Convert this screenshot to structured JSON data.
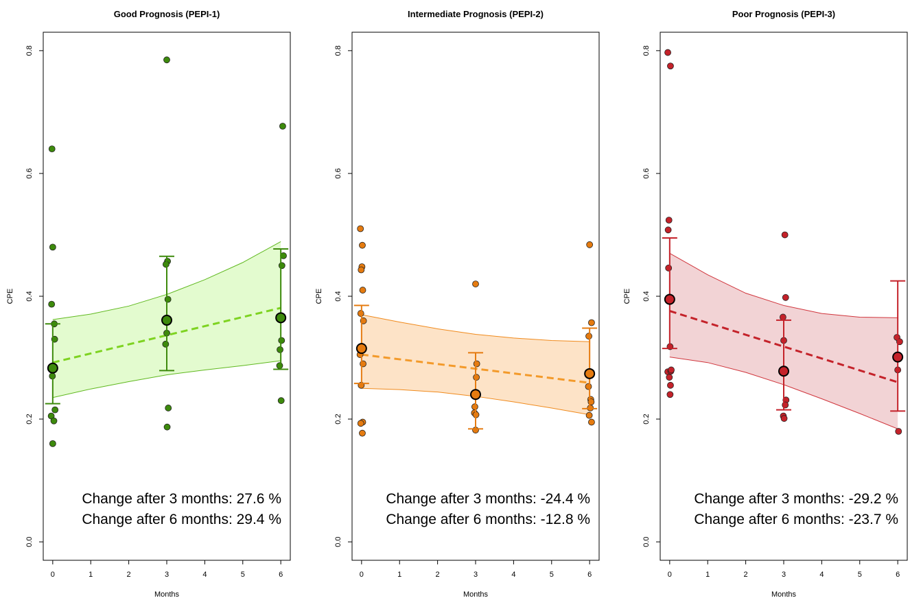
{
  "chart_data": [
    {
      "type": "scatter",
      "title": "Good Prognosis (PEPI-1)",
      "xlabel": "Months",
      "ylabel": "CPE",
      "xlim": [
        -0.25,
        6.25
      ],
      "ylim": [
        -0.03,
        0.83
      ],
      "xticks": [
        "0",
        "1",
        "2",
        "3",
        "4",
        "5",
        "6"
      ],
      "yticks": [
        "0.0",
        "0.2",
        "0.4",
        "0.6",
        "0.8"
      ],
      "colors": {
        "point": "#3d8a0c",
        "line": "#7ed321",
        "band_fill": "#e3fbcf",
        "band_edge": "#5fb81e"
      },
      "points": [
        {
          "x": -0.02,
          "y": 0.64
        },
        {
          "x": 0.0,
          "y": 0.48
        },
        {
          "x": -0.03,
          "y": 0.387
        },
        {
          "x": 0.04,
          "y": 0.355
        },
        {
          "x": 0.05,
          "y": 0.33
        },
        {
          "x": 0.01,
          "y": 0.285
        },
        {
          "x": -0.01,
          "y": 0.27
        },
        {
          "x": 0.06,
          "y": 0.215
        },
        {
          "x": -0.04,
          "y": 0.205
        },
        {
          "x": 0.03,
          "y": 0.197
        },
        {
          "x": 0.0,
          "y": 0.16
        },
        {
          "x": 3.0,
          "y": 0.785
        },
        {
          "x": 3.02,
          "y": 0.457
        },
        {
          "x": 2.98,
          "y": 0.452
        },
        {
          "x": 3.03,
          "y": 0.395
        },
        {
          "x": 3.0,
          "y": 0.34
        },
        {
          "x": 2.97,
          "y": 0.322
        },
        {
          "x": 3.04,
          "y": 0.218
        },
        {
          "x": 3.01,
          "y": 0.187
        },
        {
          "x": 6.05,
          "y": 0.677
        },
        {
          "x": 6.07,
          "y": 0.466
        },
        {
          "x": 6.03,
          "y": 0.45
        },
        {
          "x": 6.02,
          "y": 0.328
        },
        {
          "x": 5.98,
          "y": 0.313
        },
        {
          "x": 5.97,
          "y": 0.287
        },
        {
          "x": 6.01,
          "y": 0.23
        }
      ],
      "means": [
        {
          "x": 0,
          "y": 0.283,
          "lower": 0.225,
          "upper": 0.355
        },
        {
          "x": 3,
          "y": 0.361,
          "lower": 0.279,
          "upper": 0.465
        },
        {
          "x": 6,
          "y": 0.365,
          "lower": 0.281,
          "upper": 0.477
        }
      ],
      "fit": {
        "x": [
          0,
          6
        ],
        "y": [
          0.292,
          0.381
        ]
      },
      "band": {
        "x": [
          0,
          1,
          2,
          3,
          4,
          5,
          6
        ],
        "lower": [
          0.235,
          0.249,
          0.261,
          0.272,
          0.28,
          0.287,
          0.295
        ],
        "upper": [
          0.362,
          0.371,
          0.384,
          0.403,
          0.427,
          0.455,
          0.489
        ]
      },
      "annotations": [
        "Change after 3 months: 27.6 %",
        "Change after 6 months: 29.4 %"
      ]
    },
    {
      "type": "scatter",
      "title": "Intermediate Prognosis (PEPI-2)",
      "xlabel": "Months",
      "ylabel": "CPE",
      "xlim": [
        -0.25,
        6.25
      ],
      "ylim": [
        -0.03,
        0.83
      ],
      "xticks": [
        "0",
        "1",
        "2",
        "3",
        "4",
        "5",
        "6"
      ],
      "yticks": [
        "0.0",
        "0.2",
        "0.4",
        "0.6",
        "0.8"
      ],
      "colors": {
        "point": "#e57b10",
        "line": "#f39a2a",
        "band_fill": "#fde3c7",
        "band_edge": "#f08a1c"
      },
      "points": [
        {
          "x": -0.03,
          "y": 0.51
        },
        {
          "x": 0.02,
          "y": 0.483
        },
        {
          "x": 0.01,
          "y": 0.448
        },
        {
          "x": -0.01,
          "y": 0.443
        },
        {
          "x": 0.03,
          "y": 0.41
        },
        {
          "x": -0.02,
          "y": 0.372
        },
        {
          "x": 0.05,
          "y": 0.36
        },
        {
          "x": 0.0,
          "y": 0.315
        },
        {
          "x": -0.04,
          "y": 0.305
        },
        {
          "x": 0.04,
          "y": 0.29
        },
        {
          "x": -0.01,
          "y": 0.255
        },
        {
          "x": 0.03,
          "y": 0.195
        },
        {
          "x": -0.02,
          "y": 0.193
        },
        {
          "x": 0.02,
          "y": 0.177
        },
        {
          "x": 3.0,
          "y": 0.42
        },
        {
          "x": 3.03,
          "y": 0.29
        },
        {
          "x": 3.02,
          "y": 0.268
        },
        {
          "x": 2.98,
          "y": 0.22
        },
        {
          "x": 2.97,
          "y": 0.21
        },
        {
          "x": 3.01,
          "y": 0.207
        },
        {
          "x": 3.0,
          "y": 0.182
        },
        {
          "x": 6.0,
          "y": 0.484
        },
        {
          "x": 6.05,
          "y": 0.357
        },
        {
          "x": 5.98,
          "y": 0.335
        },
        {
          "x": 5.97,
          "y": 0.253
        },
        {
          "x": 6.03,
          "y": 0.232
        },
        {
          "x": 6.04,
          "y": 0.228
        },
        {
          "x": 6.02,
          "y": 0.218
        },
        {
          "x": 5.99,
          "y": 0.206
        },
        {
          "x": 6.05,
          "y": 0.195
        }
      ],
      "means": [
        {
          "x": 0,
          "y": 0.315,
          "lower": 0.258,
          "upper": 0.385
        },
        {
          "x": 3,
          "y": 0.24,
          "lower": 0.184,
          "upper": 0.308
        },
        {
          "x": 6,
          "y": 0.274,
          "lower": 0.217,
          "upper": 0.348
        }
      ],
      "fit": {
        "x": [
          0,
          6
        ],
        "y": [
          0.305,
          0.259
        ]
      },
      "band": {
        "x": [
          0,
          1,
          2,
          3,
          4,
          5,
          6
        ],
        "lower": [
          0.25,
          0.248,
          0.244,
          0.237,
          0.228,
          0.218,
          0.207
        ],
        "upper": [
          0.37,
          0.358,
          0.347,
          0.338,
          0.332,
          0.328,
          0.326
        ]
      },
      "annotations": [
        "Change after 3 months: -24.4 %",
        "Change after 6 months: -12.8 %"
      ]
    },
    {
      "type": "scatter",
      "title": "Poor Prognosis (PEPI-3)",
      "xlabel": "Months",
      "ylabel": "CPE",
      "xlim": [
        -0.25,
        6.25
      ],
      "ylim": [
        -0.03,
        0.83
      ],
      "xticks": [
        "0",
        "1",
        "2",
        "3",
        "4",
        "5",
        "6"
      ],
      "yticks": [
        "0.0",
        "0.2",
        "0.4",
        "0.6",
        "0.8"
      ],
      "colors": {
        "point": "#c4222a",
        "line": "#c4222a",
        "band_fill": "#f2d3d5",
        "band_edge": "#d0343b"
      },
      "points": [
        {
          "x": -0.05,
          "y": 0.797
        },
        {
          "x": 0.02,
          "y": 0.775
        },
        {
          "x": -0.02,
          "y": 0.524
        },
        {
          "x": -0.04,
          "y": 0.508
        },
        {
          "x": -0.03,
          "y": 0.446
        },
        {
          "x": 0.0,
          "y": 0.395
        },
        {
          "x": 0.01,
          "y": 0.318
        },
        {
          "x": -0.05,
          "y": 0.277
        },
        {
          "x": 0.03,
          "y": 0.278
        },
        {
          "x": 0.04,
          "y": 0.28
        },
        {
          "x": -0.01,
          "y": 0.268
        },
        {
          "x": 0.02,
          "y": 0.255
        },
        {
          "x": 0.01,
          "y": 0.24
        },
        {
          "x": 3.03,
          "y": 0.5
        },
        {
          "x": 3.05,
          "y": 0.398
        },
        {
          "x": 2.98,
          "y": 0.366
        },
        {
          "x": 3.0,
          "y": 0.328
        },
        {
          "x": 3.06,
          "y": 0.231
        },
        {
          "x": 3.04,
          "y": 0.223
        },
        {
          "x": 2.99,
          "y": 0.205
        },
        {
          "x": 3.01,
          "y": 0.201
        },
        {
          "x": 5.98,
          "y": 0.333
        },
        {
          "x": 6.05,
          "y": 0.326
        },
        {
          "x": 6.0,
          "y": 0.28
        },
        {
          "x": 6.02,
          "y": 0.18
        }
      ],
      "means": [
        {
          "x": 0,
          "y": 0.395,
          "lower": 0.315,
          "upper": 0.495
        },
        {
          "x": 3,
          "y": 0.278,
          "lower": 0.215,
          "upper": 0.361
        },
        {
          "x": 6,
          "y": 0.301,
          "lower": 0.213,
          "upper": 0.425
        }
      ],
      "fit": {
        "x": [
          0,
          6
        ],
        "y": [
          0.376,
          0.26
        ]
      },
      "band": {
        "x": [
          0,
          1,
          2,
          3,
          4,
          5,
          6
        ],
        "lower": [
          0.301,
          0.292,
          0.276,
          0.256,
          0.233,
          0.209,
          0.184
        ],
        "upper": [
          0.47,
          0.435,
          0.405,
          0.385,
          0.372,
          0.366,
          0.365
        ]
      },
      "annotations": [
        "Change after 3 months: -29.2 %",
        "Change after 6 months: -23.7 %"
      ]
    }
  ]
}
